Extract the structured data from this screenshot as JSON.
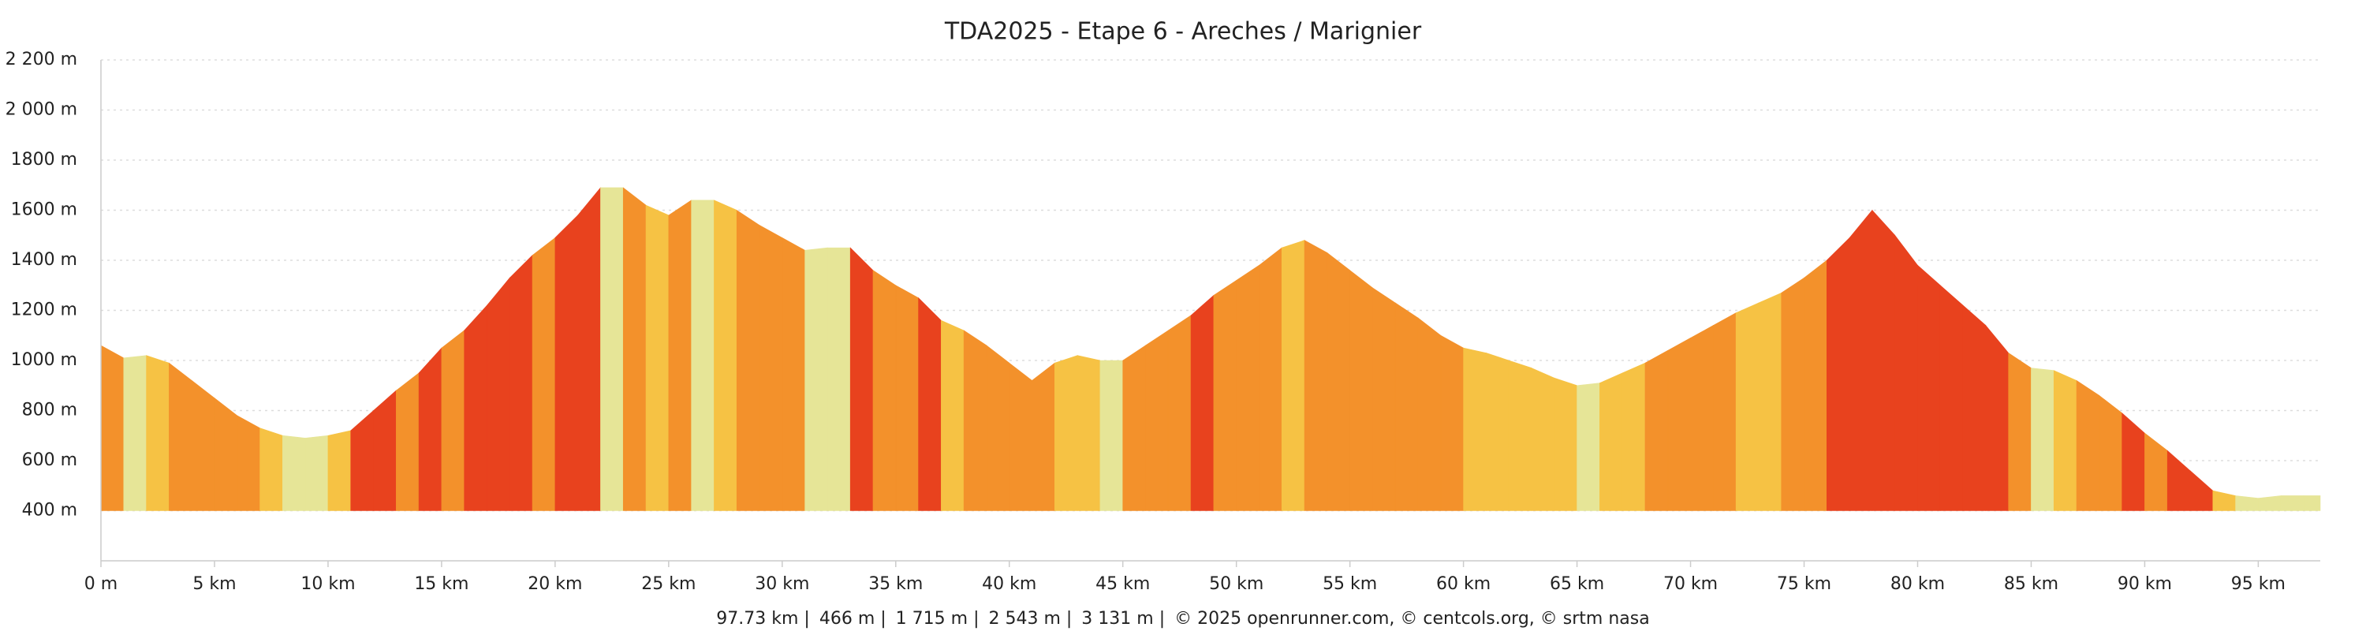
{
  "chart_data": {
    "type": "area",
    "title": "TDA2025 - Etape 6 - Areches / Marignier",
    "x": [
      0,
      1,
      2,
      3,
      4,
      5,
      6,
      7,
      8,
      9,
      10,
      11,
      12,
      13,
      14,
      15,
      16,
      17,
      18,
      19,
      20,
      21,
      22,
      23,
      24,
      25,
      26,
      27,
      28,
      29,
      30,
      31,
      32,
      33,
      34,
      35,
      36,
      37,
      38,
      39,
      40,
      41,
      42,
      43,
      44,
      45,
      46,
      47,
      48,
      49,
      50,
      51,
      52,
      53,
      54,
      55,
      56,
      57,
      58,
      59,
      60,
      61,
      62,
      63,
      64,
      65,
      66,
      67,
      68,
      69,
      70,
      71,
      72,
      73,
      74,
      75,
      76,
      77,
      78,
      79,
      80,
      81,
      82,
      83,
      84,
      85,
      86,
      87,
      88,
      89,
      90,
      91,
      92,
      93,
      94,
      95,
      96,
      97,
      97.73
    ],
    "values": [
      1060,
      1010,
      1020,
      990,
      920,
      850,
      780,
      730,
      700,
      690,
      700,
      720,
      800,
      880,
      950,
      1050,
      1120,
      1220,
      1330,
      1420,
      1490,
      1580,
      1690,
      1690,
      1620,
      1580,
      1640,
      1640,
      1600,
      1540,
      1490,
      1440,
      1450,
      1450,
      1360,
      1300,
      1250,
      1160,
      1120,
      1060,
      990,
      920,
      990,
      1020,
      1000,
      1000,
      1060,
      1120,
      1180,
      1260,
      1320,
      1380,
      1450,
      1480,
      1430,
      1360,
      1290,
      1230,
      1170,
      1100,
      1050,
      1030,
      1000,
      970,
      930,
      900,
      910,
      950,
      990,
      1040,
      1090,
      1140,
      1190,
      1230,
      1270,
      1330,
      1400,
      1490,
      1600,
      1500,
      1380,
      1300,
      1220,
      1140,
      1030,
      970,
      960,
      920,
      860,
      790,
      710,
      640,
      560,
      480,
      460,
      450,
      460,
      460,
      460
    ],
    "colors": [
      "#e6e597",
      "#f6c244",
      "#f3912b",
      "#e8421e"
    ],
    "xlim": [
      0,
      97.73
    ],
    "ylim": [
      200,
      2200
    ],
    "xticks": [
      {
        "value": 0,
        "label": "0 m"
      },
      {
        "value": 5,
        "label": "5 km"
      },
      {
        "value": 10,
        "label": "10 km"
      },
      {
        "value": 15,
        "label": "15 km"
      },
      {
        "value": 20,
        "label": "20 km"
      },
      {
        "value": 25,
        "label": "25 km"
      },
      {
        "value": 30,
        "label": "30 km"
      },
      {
        "value": 35,
        "label": "35 km"
      },
      {
        "value": 40,
        "label": "40 km"
      },
      {
        "value": 45,
        "label": "45 km"
      },
      {
        "value": 50,
        "label": "50 km"
      },
      {
        "value": 55,
        "label": "55 km"
      },
      {
        "value": 60,
        "label": "60 km"
      },
      {
        "value": 65,
        "label": "65 km"
      },
      {
        "value": 70,
        "label": "70 km"
      },
      {
        "value": 75,
        "label": "75 km"
      },
      {
        "value": 80,
        "label": "80 km"
      },
      {
        "value": 85,
        "label": "85 km"
      },
      {
        "value": 90,
        "label": "90 km"
      },
      {
        "value": 95,
        "label": "95 km"
      }
    ],
    "yticks": [
      {
        "value": 400,
        "label": "400 m"
      },
      {
        "value": 600,
        "label": "600 m"
      },
      {
        "value": 800,
        "label": "800 m"
      },
      {
        "value": 1000,
        "label": "1000 m"
      },
      {
        "value": 1200,
        "label": "1200 m"
      },
      {
        "value": 1400,
        "label": "1400 m"
      },
      {
        "value": 1600,
        "label": "1600 m"
      },
      {
        "value": 1800,
        "label": "1800 m"
      },
      {
        "value": 2000,
        "label": "2 000 m"
      },
      {
        "value": 2200,
        "label": "2 200 m"
      }
    ],
    "grid": true,
    "footer": [
      "97.73 km |",
      "466 m |",
      "1 715 m |",
      "2 543 m |",
      "3 131 m |",
      "© 2025 openrunner.com, © centcols.org, © srtm nasa"
    ]
  }
}
